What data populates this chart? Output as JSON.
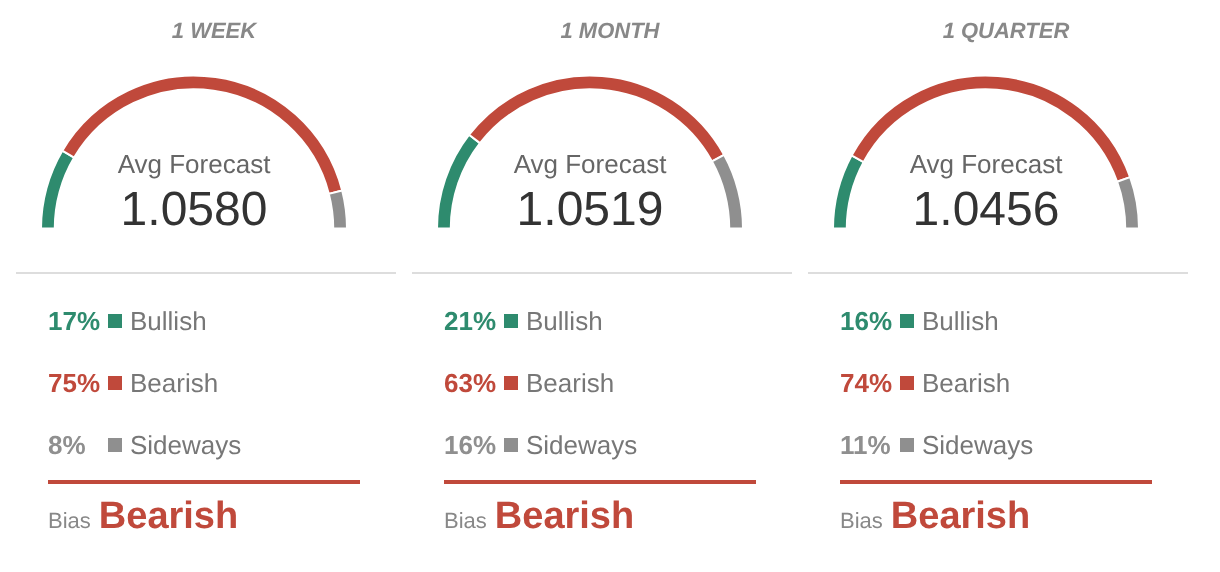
{
  "chart_data": [
    {
      "type": "donut",
      "title": "1 WEEK",
      "categories": [
        "Bullish",
        "Bearish",
        "Sideways"
      ],
      "values": [
        17,
        75,
        8
      ],
      "value_labels": [
        "17%",
        "75%",
        "8%"
      ],
      "legend": "bottom",
      "colors": [
        "#2e8b6e",
        "#c0493b",
        "#8f8f8f"
      ],
      "annotations": [
        "Avg Forecast",
        "1.0580",
        "Bias",
        "Bearish"
      ]
    },
    {
      "type": "donut",
      "title": "1 MONTH",
      "categories": [
        "Bullish",
        "Bearish",
        "Sideways"
      ],
      "values": [
        21,
        63,
        16
      ],
      "value_labels": [
        "21%",
        "63%",
        "16%"
      ],
      "legend": "bottom",
      "colors": [
        "#2e8b6e",
        "#c0493b",
        "#8f8f8f"
      ],
      "annotations": [
        "Avg Forecast",
        "1.0519",
        "Bias",
        "Bearish"
      ]
    },
    {
      "type": "donut",
      "title": "1 QUARTER",
      "categories": [
        "Bullish",
        "Bearish",
        "Sideways"
      ],
      "values": [
        16,
        74,
        11
      ],
      "value_labels": [
        "16%",
        "74%",
        "11%"
      ],
      "legend": "bottom",
      "colors": [
        "#2e8b6e",
        "#c0493b",
        "#8f8f8f"
      ],
      "annotations": [
        "Avg Forecast",
        "1.0456",
        "Bias",
        "Bearish"
      ]
    }
  ]
}
